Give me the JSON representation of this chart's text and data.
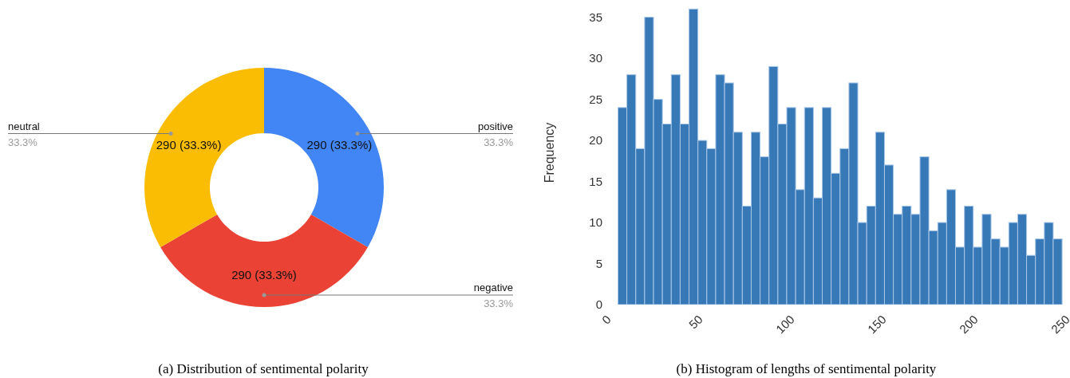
{
  "chart_data": [
    {
      "type": "donut",
      "title": "(a) Distribution of sentimental polarity",
      "categories": [
        "positive",
        "negative",
        "neutral"
      ],
      "values": [
        290,
        290,
        290
      ],
      "colors": [
        "#4285f4",
        "#ea4335",
        "#fbbc04"
      ],
      "value_labels": [
        "290 (33.3%)",
        "290 (33.3%)",
        "290 (33.3%)"
      ],
      "annotations": [
        "33.3%",
        "33.3%",
        "33.3%"
      ]
    },
    {
      "type": "histogram",
      "title": "(b) Histogram of lengths of sentimental polarity",
      "ylabel": "Frequency",
      "color": "#3778b7",
      "bins": [
        5,
        9.84,
        14.68,
        19.52,
        24.36,
        29.2,
        34.04,
        38.88,
        43.72,
        48.56,
        53.4,
        58.24,
        63.08,
        67.92,
        72.76,
        77.6,
        82.44,
        87.28,
        92.12,
        96.96,
        101.8,
        106.64,
        111.48,
        116.32,
        121.16,
        126,
        130.84,
        135.68,
        140.52,
        145.36,
        150.2,
        155.04,
        159.88,
        164.72,
        169.56,
        174.4,
        179.24,
        184.08,
        188.92,
        193.76,
        198.6,
        203.44,
        208.28,
        213.12,
        217.96,
        222.8,
        227.64,
        232.48,
        237.32,
        242.16,
        247
      ],
      "values": [
        24,
        28,
        19,
        35,
        25,
        22,
        28,
        22,
        36,
        20,
        19,
        28,
        27,
        21,
        12,
        21,
        18,
        29,
        22,
        24,
        14,
        24,
        13,
        24,
        16,
        19,
        27,
        10,
        12,
        21,
        17,
        11,
        12,
        11,
        18,
        9,
        10,
        14,
        7,
        12,
        7,
        11,
        8,
        7,
        10,
        11,
        6,
        8,
        10,
        8
      ],
      "xlim": [
        0,
        250
      ],
      "xticks": [
        0,
        50,
        100,
        150,
        200,
        250
      ],
      "ylim": [
        0,
        37
      ],
      "yticks": [
        0,
        5,
        10,
        15,
        20,
        25,
        30,
        35
      ],
      "grid": false
    }
  ]
}
